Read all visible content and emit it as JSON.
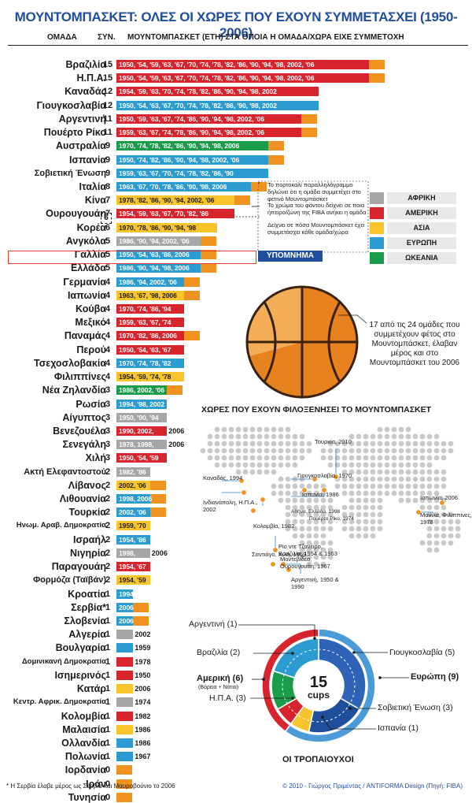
{
  "title": "ΜΟΥΝΤΟΜΠΑΣΚΕΤ: ΟΛΕΣ ΟΙ ΧΩΡΕΣ ΠΟΥ ΕΧΟΥΝ ΣΥΜΜΕΤΑΣΧΕΙ (1950-2006)",
  "headers": {
    "team": "ΟΜΑΔΑ",
    "participations": "ΣΥΝ.",
    "years": "ΜΟΥΝΤΟΜΠΑΣΚΕΤ (ΕΤΗ) ΣΤΑ ΟΠΟΙΑ Η ΟΜΑΔΑ/ΧΩΡΑ ΕΙΧΕ ΣΥΜΜΕΤΟΧΗ"
  },
  "colors": {
    "africa": "#a6a6a6",
    "america": "#d7242d",
    "asia": "#f7c52b",
    "europe": "#2b9bd1",
    "oceania": "#1a9c4b",
    "current": "#f0921f",
    "title": "#1f4e9c"
  },
  "chart_data": [
    {
      "type": "bar",
      "title": "ΜΟΥΝΤΟΜΠΑΣΚΕΤ: ΟΛΕΣ ΟΙ ΧΩΡΕΣ ΠΟΥ ΕΧΟΥΝ ΣΥΜΜΕΤΑΣΧΕΙ (1950-2006)",
      "xlabel": "ΜΟΥΝΤΟΜΠΑΣΚΕΤ (ΕΤΗ) ΣΤΑ ΟΠΟΙΑ Η ΟΜΑΔΑ/ΧΩΡΑ ΕΙΧΕ ΣΥΜΜΕΤΟΧΗ",
      "ylabel": "ΟΜΑΔΑ",
      "rows": [
        {
          "name": "Βραζιλία",
          "count": 15,
          "region": "america",
          "years": "1950, '54, '59, '63, '67, '70, '74, '78, '82, '86, '90, '94, '98, 2002, '06",
          "current": true
        },
        {
          "name": "Η.Π.Α.",
          "count": 15,
          "region": "america",
          "years": "1950, '54, '59, '63, '67, '70, '74, '78, '82, '86, '90, '94, '98, 2002, '06",
          "current": true
        },
        {
          "name": "Καναδάς",
          "count": 12,
          "region": "america",
          "years": "1954, '59, '63, '70, '74, '78, '82, '86, '90, '94, '98, 2002",
          "current": false
        },
        {
          "name": "Γιουγκοσλαβία",
          "count": 12,
          "region": "europe",
          "years": "1950, '54, '63, '67, '70, '74, '78, '82, '86, '90, '98, 2002",
          "current": false
        },
        {
          "name": "Αργεντινή",
          "count": 11,
          "region": "america",
          "years": "1950, '59, '63, '67, '74, '86, '90, '94, '98, 2002, '06",
          "current": true
        },
        {
          "name": "Πουέρτο Ρίκο",
          "count": 11,
          "region": "america",
          "years": "1959, '63, '67, '74, '78, '86, '90, '94, '98, 2002, '06",
          "current": true
        },
        {
          "name": "Αυστραλία",
          "count": 9,
          "region": "oceania",
          "years": "1970, '74, '78, '82, '86, '90, '94, '98, 2006",
          "current": true
        },
        {
          "name": "Ισπανία",
          "count": 9,
          "region": "europe",
          "years": "1950, '74, '82, '86, '90, '94, '98, 2002, '06",
          "current": true
        },
        {
          "name": "Σοβιετική Ένωση",
          "count": 9,
          "region": "europe",
          "years": "1959, '63, '67, '70, '74, '78, '82, '86, '90",
          "current": false
        },
        {
          "name": "Ιταλία",
          "count": 8,
          "region": "europe",
          "years": "1963, '67, '70, '78, '86, '90, '98, 2006",
          "current": true
        },
        {
          "name": "Κίνα",
          "count": 7,
          "region": "asia",
          "years": "1978, '82, '86, '90, '94, 2002, '06",
          "current": true
        },
        {
          "name": "Ουρουγουάη",
          "count": 7,
          "region": "america",
          "years": "1954, '59, '63, '67, '70, '82, '86",
          "current": false
        },
        {
          "name": "Κορέα",
          "count": 6,
          "region": "asia",
          "years": "1970, '78, '86, '90, '94, '98",
          "current": false
        },
        {
          "name": "Ανγκόλα",
          "count": 5,
          "region": "africa",
          "years": "1986, '90, '94, 2002, '06",
          "current": true
        },
        {
          "name": "Γαλλία",
          "count": 5,
          "region": "europe",
          "years": "1950, '54, '63, '86, 2006",
          "current": true
        },
        {
          "name": "Ελλάδα",
          "count": 5,
          "region": "europe",
          "years": "1986, '90, '94, '98, 2006",
          "current": true
        },
        {
          "name": "Γερμανία",
          "count": 4,
          "region": "europe",
          "years": "1986, '94, 2002, '06",
          "current": true
        },
        {
          "name": "Ιαπωνία",
          "count": 4,
          "region": "asia",
          "years": "1963, '67, '98, 2006",
          "current": true
        },
        {
          "name": "Κούβα",
          "count": 4,
          "region": "america",
          "years": "1970, '74, '86, '94",
          "current": false
        },
        {
          "name": "Μεξικό",
          "count": 4,
          "region": "america",
          "years": "1959, '63, '67, '74",
          "current": false
        },
        {
          "name": "Παναμάς",
          "count": 4,
          "region": "america",
          "years": "1970, '82, '86, 2006",
          "current": true
        },
        {
          "name": "Περού",
          "count": 4,
          "region": "america",
          "years": "1950, '54, '63, '67",
          "current": false
        },
        {
          "name": "Τσεχοσλοβακία",
          "count": 4,
          "region": "europe",
          "years": "1970, '74, '78, '82",
          "current": false
        },
        {
          "name": "Φιλιππίνες",
          "count": 4,
          "region": "asia",
          "years": "1954, '59, '74, '78",
          "current": false
        },
        {
          "name": "Νέα Ζηλανδία",
          "count": 3,
          "region": "oceania",
          "years": "1986, 2002, '06",
          "current": true
        },
        {
          "name": "Ρωσία",
          "count": 3,
          "region": "europe",
          "years": "1994, '98, 2002",
          "current": false
        },
        {
          "name": "Αίγυπτος",
          "count": 3,
          "region": "africa",
          "years": "1950, '90, '94",
          "current": false
        },
        {
          "name": "Βενεζουέλα",
          "count": 3,
          "region": "america",
          "years": "1990, 2002,",
          "current": false,
          "after": "2006"
        },
        {
          "name": "Σενεγάλη",
          "count": 3,
          "region": "africa",
          "years": "1978, 1998,",
          "current": false,
          "after": "2006"
        },
        {
          "name": "Χιλή",
          "count": 3,
          "region": "america",
          "years": "1950, '54, '59",
          "current": false
        },
        {
          "name": "Ακτή Ελεφαντοστού",
          "count": 2,
          "region": "africa",
          "years": "1982, '86",
          "current": false
        },
        {
          "name": "Λίβανος",
          "count": 2,
          "region": "asia",
          "years": "2002, '06",
          "current": true
        },
        {
          "name": "Λιθουανία",
          "count": 2,
          "region": "europe",
          "years": "1998, 2006",
          "current": true
        },
        {
          "name": "Τουρκία",
          "count": 2,
          "region": "europe",
          "years": "2002, '06",
          "current": true
        },
        {
          "name": "Ηνωμ. Αραβ. Δημοκρατία",
          "count": 2,
          "region": "asia",
          "years": "1959, '70",
          "current": false
        },
        {
          "name": "Ισραήλ",
          "count": 2,
          "region": "europe",
          "years": "1954, '86",
          "current": false
        },
        {
          "name": "Νιγηρία",
          "count": 2,
          "region": "africa",
          "years": "1998,",
          "current": false,
          "after": "2006"
        },
        {
          "name": "Παραγουάη",
          "count": 2,
          "region": "america",
          "years": "1954, '67",
          "current": false
        },
        {
          "name": "Φορμόζα (Ταϊβάν)",
          "count": 2,
          "region": "asia",
          "years": "1954, '59",
          "current": false
        },
        {
          "name": "Κροατία",
          "count": 1,
          "region": "europe",
          "years": "1994",
          "current": false
        },
        {
          "name": "Σερβία*",
          "count": 1,
          "region": "europe",
          "years": "2006",
          "current": true
        },
        {
          "name": "Σλοβενία",
          "count": 1,
          "region": "europe",
          "years": "2006",
          "current": true
        },
        {
          "name": "Αλγερία",
          "count": 1,
          "region": "africa",
          "years": "",
          "current": false,
          "after": "2002"
        },
        {
          "name": "Βουλγαρία",
          "count": 1,
          "region": "europe",
          "years": "",
          "current": false,
          "after": "1959"
        },
        {
          "name": "Δομινικανή Δημοκρατία",
          "count": 1,
          "region": "america",
          "years": "",
          "current": false,
          "after": "1978"
        },
        {
          "name": "Ισημερινός",
          "count": 1,
          "region": "america",
          "years": "",
          "current": false,
          "after": "1950"
        },
        {
          "name": "Κατάρ",
          "count": 1,
          "region": "asia",
          "years": "",
          "current": false,
          "after": "2006"
        },
        {
          "name": "Κεντρ. Αφρικ. Δημοκρατία",
          "count": 1,
          "region": "africa",
          "years": "",
          "current": false,
          "after": "1974"
        },
        {
          "name": "Κολομβία",
          "count": 1,
          "region": "america",
          "years": "",
          "current": false,
          "after": "1982"
        },
        {
          "name": "Μαλαισία",
          "count": 1,
          "region": "asia",
          "years": "",
          "current": false,
          "after": "1986"
        },
        {
          "name": "Ολλανδία",
          "count": 1,
          "region": "europe",
          "years": "",
          "current": false,
          "after": "1986"
        },
        {
          "name": "Πολωνία",
          "count": 1,
          "region": "europe",
          "years": "",
          "current": false,
          "after": "1967"
        },
        {
          "name": "Ιορδανία",
          "count": 0,
          "region": "asia",
          "years": "",
          "current": true
        },
        {
          "name": "Ιράν",
          "count": 0,
          "region": "asia",
          "years": "",
          "current": true
        },
        {
          "name": "Τυνησία",
          "count": 0,
          "region": "africa",
          "years": "",
          "current": true
        }
      ]
    },
    {
      "type": "pie",
      "title": "17 από τις 24 ομάδες που συμμετέχουν φέτος στο Μουντομπάσκετ, έλαβαν μέρος και στο Μουντομπάσκετ του 2006",
      "values": [
        17,
        7
      ],
      "labels": [
        "2006",
        "Νέες"
      ]
    },
    {
      "type": "pie",
      "title": "ΟΙ ΤΡΟΠΑΙΟΥΧΟΙ",
      "center_value": "15",
      "center_unit": "cups",
      "outer": [
        {
          "name": "Αμερική (6)",
          "value": 6,
          "region": "america"
        },
        {
          "name": "Ευρώπη (9)",
          "value": 9,
          "region": "europe"
        }
      ],
      "inner": [
        {
          "name": "Γιουγκοσλαβία (5)",
          "value": 5,
          "region": "europe"
        },
        {
          "name": "Σοβιετική Ένωση (3)",
          "value": 3,
          "region": "europe"
        },
        {
          "name": "Ισπανία (1)",
          "value": 1,
          "region": "europe"
        },
        {
          "name": "Η.Π.Α. (3)",
          "value": 3,
          "region": "america"
        },
        {
          "name": "Βραζιλία (2)",
          "value": 2,
          "region": "america"
        },
        {
          "name": "Αργεντινή (1)",
          "value": 1,
          "region": "america"
        }
      ]
    }
  ],
  "legend": {
    "title": "ΥΠΟΜΝΗΜΑ",
    "items": [
      {
        "label": "ΑΦΡΙΚΗ",
        "region": "africa"
      },
      {
        "label": "ΑΜΕΡΙΚΗ",
        "region": "america"
      },
      {
        "label": "ΑΣΙΑ",
        "region": "asia"
      },
      {
        "label": "ΕΥΡΩΠΗ",
        "region": "europe"
      },
      {
        "label": "ΩΚΕΑΝΙΑ",
        "region": "oceania"
      }
    ],
    "note1": "Το πορτοκαλί παραλληλόγραμμο δηλώνει ότι η ομάδα συμμετέχει στο φετινό Μουντομπάσκετ",
    "note2": "Το χρώμα του φόντου δείχνει σε ποια ήπειρο/ζώνη της FIBA ανήκει η ομάδα",
    "note3": "Δείχνει σε πόσα Μουντομπάσκετ έχει συμμετάσχει κάθε ομάδα/χώρα",
    "note_num": "6"
  },
  "map": {
    "title": "ΧΩΡΕΣ ΠΟΥ ΕΧΟΥΝ ΦΙΛΟΞΕΝΗΣΕΙ ΤΟ ΜΟΥΝΤΟΜΠΑΣΚΕΤ",
    "hosts": [
      {
        "label": "Τουρκία, 2010"
      },
      {
        "label": "Γιουγκοσλαβία, 1970"
      },
      {
        "label": "Καναδάς, 1994"
      },
      {
        "label": "Ισπανία, 1986"
      },
      {
        "label": "Ινδιανάπολη, Η.Π.Α., 2002"
      },
      {
        "label": "Αθήνα, Ελλάδα, 1998"
      },
      {
        "label": "Πουέρτο Ρίκο, 1974"
      },
      {
        "label": "Ιαπωνία, 2006"
      },
      {
        "label": "Κολομβία, 1982"
      },
      {
        "label": "Μανίλα, Φιλιππίνες, 1978"
      },
      {
        "label": "Ρίο ντε Τζανέιρο, Βραζιλία, 1954 & 1963"
      },
      {
        "label": "Σαντιάγο, Χιλή, 1959"
      },
      {
        "label": "Μοντεβιδέο, Ουρουγουάη, 1967"
      },
      {
        "label": "Αργεντινή, 1950 & 1990"
      }
    ]
  },
  "footnote": "* Η Σερβία έλαβε μέρος ως Σερβία και Μαυροβούνιο το 2006",
  "credit": "© 2010 - Γιώργος Πριμέντας / ANTIFORMA Design (Πηγή: FIBA)"
}
